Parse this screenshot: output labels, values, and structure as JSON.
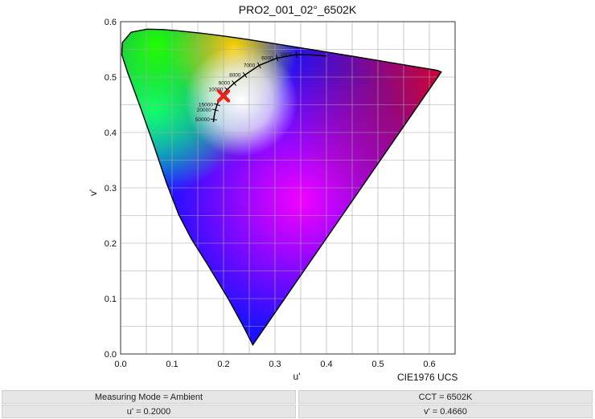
{
  "chart_data": {
    "type": "scatter",
    "title": "PRO2_001_02°_6502K",
    "xlabel": "u'",
    "ylabel": "v'",
    "diagram_label": "CIE1976 UCS",
    "xlim": [
      0,
      0.65
    ],
    "ylim": [
      0,
      0.6
    ],
    "x_ticks": [
      "0.0",
      "0.1",
      "0.2",
      "0.3",
      "0.4",
      "0.5",
      "0.6"
    ],
    "y_ticks": [
      "0.0",
      "0.1",
      "0.2",
      "0.3",
      "0.4",
      "0.5",
      "0.6"
    ],
    "grid": true,
    "spectral_locus": [
      [
        0.2568,
        0.0165
      ],
      [
        0.2387,
        0.0495
      ],
      [
        0.2091,
        0.0999
      ],
      [
        0.1691,
        0.1614
      ],
      [
        0.1374,
        0.2081
      ],
      [
        0.113,
        0.2514
      ],
      [
        0.0895,
        0.3078
      ],
      [
        0.0645,
        0.3768
      ],
      [
        0.0389,
        0.4442
      ],
      [
        0.0137,
        0.508
      ],
      [
        0.0024,
        0.5404
      ],
      [
        0.0035,
        0.5623
      ],
      [
        0.0204,
        0.581
      ],
      [
        0.0511,
        0.5865
      ],
      [
        0.0818,
        0.5858
      ],
      [
        0.113,
        0.5835
      ],
      [
        0.1577,
        0.5792
      ],
      [
        0.2053,
        0.5735
      ],
      [
        0.2511,
        0.5672
      ],
      [
        0.2985,
        0.5604
      ],
      [
        0.3499,
        0.5528
      ],
      [
        0.4041,
        0.5447
      ],
      [
        0.4548,
        0.537
      ],
      [
        0.5011,
        0.5298
      ],
      [
        0.542,
        0.5235
      ],
      [
        0.5749,
        0.5184
      ],
      [
        0.5998,
        0.5146
      ],
      [
        0.6157,
        0.512
      ],
      [
        0.6232,
        0.5091
      ]
    ],
    "planckian_locus": [
      [
        0.1805,
        0.4188
      ],
      [
        0.181,
        0.4233
      ],
      [
        0.1822,
        0.4315
      ],
      [
        0.1842,
        0.4405
      ],
      [
        0.1875,
        0.4502
      ],
      [
        0.1925,
        0.4601
      ],
      [
        0.1986,
        0.4682
      ],
      [
        0.2069,
        0.4774
      ],
      [
        0.2205,
        0.489
      ],
      [
        0.2415,
        0.5037
      ],
      [
        0.2692,
        0.5211
      ],
      [
        0.3042,
        0.5342
      ],
      [
        0.3415,
        0.5406
      ],
      [
        0.365,
        0.5405
      ],
      [
        0.4,
        0.538
      ]
    ],
    "cct_tick_labels": [
      "5000",
      "6000",
      "7000",
      "8000",
      "9000",
      "10000",
      "15000",
      "20000",
      "50000"
    ],
    "measurement": {
      "u": 0.2,
      "v": 0.466,
      "marker": "red-x",
      "color": "#e8231b"
    }
  },
  "info": {
    "measuring_mode": "Measuring Mode = Ambient",
    "cct": "CCT = 6502K",
    "u_value": "u' = 0.2000",
    "v_value": "v' = 0.4660"
  }
}
